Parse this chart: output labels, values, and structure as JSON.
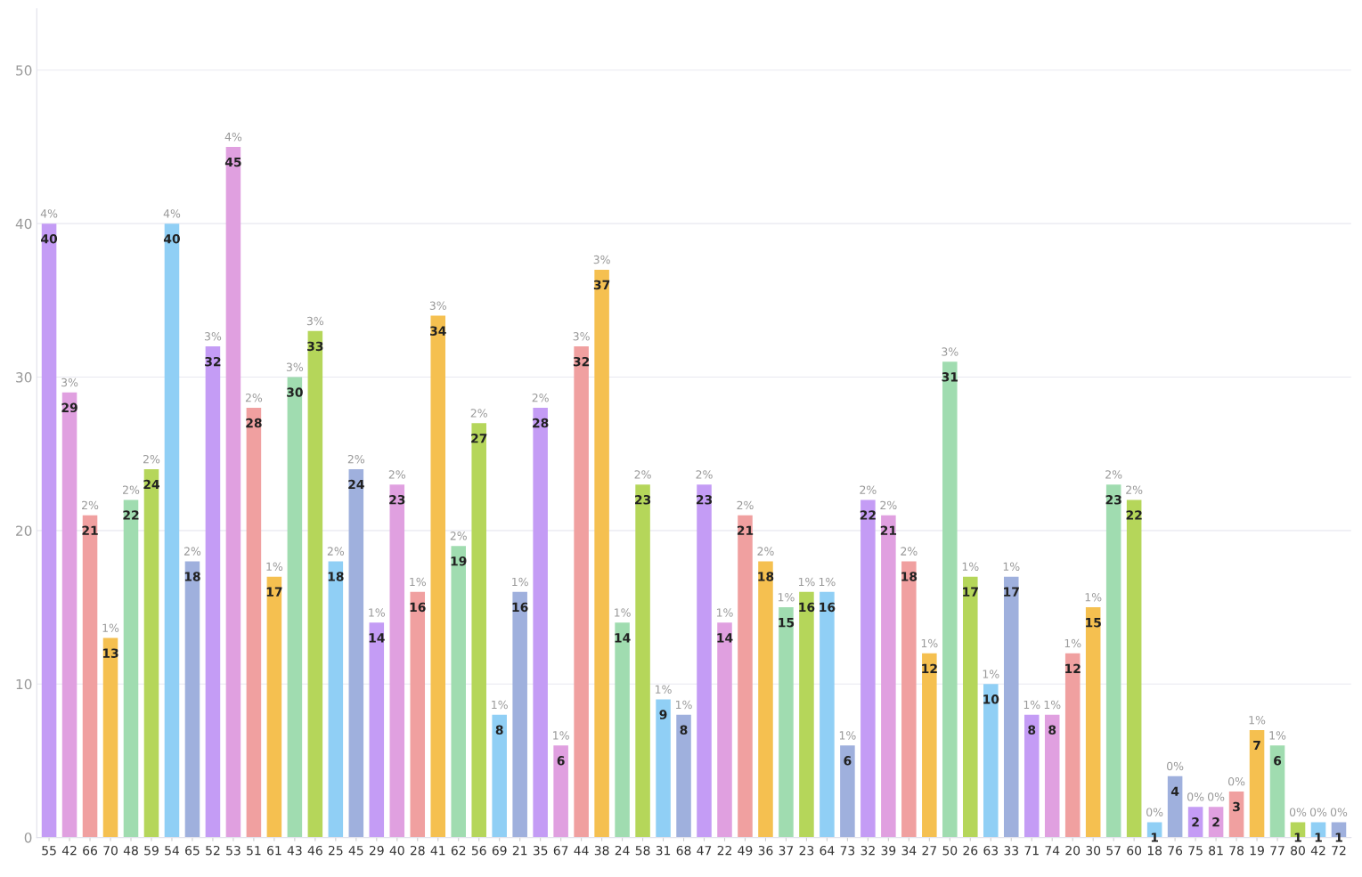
{
  "chart_data": {
    "type": "bar",
    "categories": [
      "55",
      "42",
      "66",
      "70",
      "48",
      "59",
      "54",
      "65",
      "52",
      "53",
      "51",
      "61",
      "43",
      "46",
      "25",
      "45",
      "29",
      "40",
      "28",
      "41",
      "62",
      "56",
      "69",
      "21",
      "35",
      "67",
      "44",
      "38",
      "24",
      "58",
      "31",
      "68",
      "47",
      "22",
      "49",
      "36",
      "37",
      "23",
      "64",
      "73",
      "32",
      "39",
      "34",
      "27",
      "50",
      "26",
      "63",
      "33",
      "71",
      "74",
      "20",
      "30",
      "57",
      "60",
      "18",
      "76",
      "75",
      "81",
      "78",
      "19",
      "77",
      "80",
      "42",
      "72"
    ],
    "values": [
      40,
      29,
      21,
      13,
      22,
      24,
      40,
      18,
      32,
      45,
      28,
      17,
      30,
      33,
      18,
      24,
      14,
      23,
      16,
      34,
      19,
      27,
      8,
      16,
      28,
      6,
      32,
      37,
      14,
      23,
      9,
      8,
      23,
      14,
      21,
      18,
      15,
      16,
      16,
      6,
      22,
      21,
      18,
      12,
      31,
      17,
      10,
      17,
      8,
      8,
      12,
      15,
      23,
      22,
      1,
      4,
      2,
      2,
      3,
      7,
      6,
      1,
      1,
      1
    ],
    "annotations": [
      {
        "text": "4%",
        "x": "55",
        "y": 40
      },
      {
        "text": "3%",
        "x": "42",
        "y": 29
      },
      {
        "text": "2%",
        "x": "66",
        "y": 21
      },
      {
        "text": "1%",
        "x": "70",
        "y": 13
      },
      {
        "text": "2%",
        "x": "48",
        "y": 22
      },
      {
        "text": "2%",
        "x": "59",
        "y": 24
      },
      {
        "text": "4%",
        "x": "54",
        "y": 40
      },
      {
        "text": "2%",
        "x": "65",
        "y": 18
      },
      {
        "text": "3%",
        "x": "52",
        "y": 32
      },
      {
        "text": "4%",
        "x": "53",
        "y": 45
      },
      {
        "text": "2%",
        "x": "51",
        "y": 28
      },
      {
        "text": "1%",
        "x": "61",
        "y": 17
      },
      {
        "text": "3%",
        "x": "43",
        "y": 30
      },
      {
        "text": "3%",
        "x": "46",
        "y": 33
      },
      {
        "text": "2%",
        "x": "25",
        "y": 18
      },
      {
        "text": "2%",
        "x": "45",
        "y": 24
      },
      {
        "text": "1%",
        "x": "29",
        "y": 14
      },
      {
        "text": "2%",
        "x": "40",
        "y": 23
      },
      {
        "text": "1%",
        "x": "28",
        "y": 16
      },
      {
        "text": "3%",
        "x": "41",
        "y": 34
      },
      {
        "text": "2%",
        "x": "62",
        "y": 19
      },
      {
        "text": "2%",
        "x": "56",
        "y": 27
      },
      {
        "text": "1%",
        "x": "69",
        "y": 8
      },
      {
        "text": "1%",
        "x": "21",
        "y": 16
      },
      {
        "text": "2%",
        "x": "35",
        "y": 28
      },
      {
        "text": "1%",
        "x": "67",
        "y": 6
      },
      {
        "text": "3%",
        "x": "44",
        "y": 32
      },
      {
        "text": "3%",
        "x": "38",
        "y": 37
      },
      {
        "text": "1%",
        "x": "24",
        "y": 14
      },
      {
        "text": "2%",
        "x": "58",
        "y": 23
      },
      {
        "text": "1%",
        "x": "31",
        "y": 9
      },
      {
        "text": "1%",
        "x": "68",
        "y": 8
      },
      {
        "text": "2%",
        "x": "47",
        "y": 23
      },
      {
        "text": "1%",
        "x": "22",
        "y": 14
      },
      {
        "text": "2%",
        "x": "49",
        "y": 21
      },
      {
        "text": "2%",
        "x": "36",
        "y": 18
      },
      {
        "text": "1%",
        "x": "37",
        "y": 15
      },
      {
        "text": "1%",
        "x": "23",
        "y": 16
      },
      {
        "text": "1%",
        "x": "64",
        "y": 16
      },
      {
        "text": "1%",
        "x": "73",
        "y": 6
      },
      {
        "text": "2%",
        "x": "32",
        "y": 22
      },
      {
        "text": "2%",
        "x": "39",
        "y": 21
      },
      {
        "text": "2%",
        "x": "34",
        "y": 18
      },
      {
        "text": "1%",
        "x": "27",
        "y": 12
      },
      {
        "text": "3%",
        "x": "50",
        "y": 31
      },
      {
        "text": "1%",
        "x": "26",
        "y": 17
      },
      {
        "text": "1%",
        "x": "63",
        "y": 10
      },
      {
        "text": "1%",
        "x": "33",
        "y": 17
      },
      {
        "text": "1%",
        "x": "71",
        "y": 8
      },
      {
        "text": "1%",
        "x": "74",
        "y": 8
      },
      {
        "text": "1%",
        "x": "20",
        "y": 12
      },
      {
        "text": "1%",
        "x": "30",
        "y": 15
      },
      {
        "text": "2%",
        "x": "57",
        "y": 23
      },
      {
        "text": "2%",
        "x": "60",
        "y": 22
      },
      {
        "text": "0%",
        "x": "18",
        "y": 1
      },
      {
        "text": "0%",
        "x": "76",
        "y": 4
      },
      {
        "text": "0%",
        "x": "75",
        "y": 2
      },
      {
        "text": "0%",
        "x": "81",
        "y": 2
      },
      {
        "text": "0%",
        "x": "78",
        "y": 3
      },
      {
        "text": "1%",
        "x": "19",
        "y": 7
      },
      {
        "text": "1%",
        "x": "77",
        "y": 6
      },
      {
        "text": "0%",
        "x": "80",
        "y": 1
      },
      {
        "text": "0%",
        "y": 1
      },
      {
        "text": "0%",
        "x": "72",
        "y": 1
      }
    ],
    "data_labels": true,
    "colors": [
      "#c49cf5",
      "#e0a0e0",
      "#f0a0a0",
      "#f5c050",
      "#a0dcb0",
      "#b5d65a",
      "#90cff5",
      "#9fb0dd",
      "#c49cf5",
      "#e0a0e0",
      "#f0a0a0",
      "#f5c050",
      "#a0dcb0",
      "#b5d65a",
      "#90cff5",
      "#9fb0dd",
      "#c49cf5",
      "#e0a0e0",
      "#f0a0a0",
      "#f5c050",
      "#a0dcb0",
      "#b5d65a",
      "#90cff5",
      "#9fb0dd",
      "#c49cf5",
      "#e0a0e0",
      "#f0a0a0",
      "#f5c050",
      "#a0dcb0",
      "#b5d65a",
      "#90cff5",
      "#9fb0dd",
      "#c49cf5",
      "#e0a0e0",
      "#f0a0a0",
      "#f5c050",
      "#a0dcb0",
      "#b5d65a",
      "#90cff5",
      "#9fb0dd",
      "#c49cf5",
      "#e0a0e0",
      "#f0a0a0",
      "#f5c050",
      "#a0dcb0",
      "#b5d65a",
      "#90cff5",
      "#9fb0dd",
      "#c49cf5",
      "#e0a0e0",
      "#f0a0a0",
      "#f5c050",
      "#a0dcb0",
      "#b5d65a",
      "#90cff5",
      "#9fb0dd",
      "#c49cf5",
      "#e0a0e0",
      "#f0a0a0",
      "#f5c050",
      "#a0dcb0",
      "#b5d65a",
      "#90cff5",
      "#9fb0dd"
    ],
    "ylim": [
      0,
      54
    ],
    "yticks": [
      0,
      10,
      20,
      30,
      40,
      50
    ],
    "grid": "y"
  }
}
